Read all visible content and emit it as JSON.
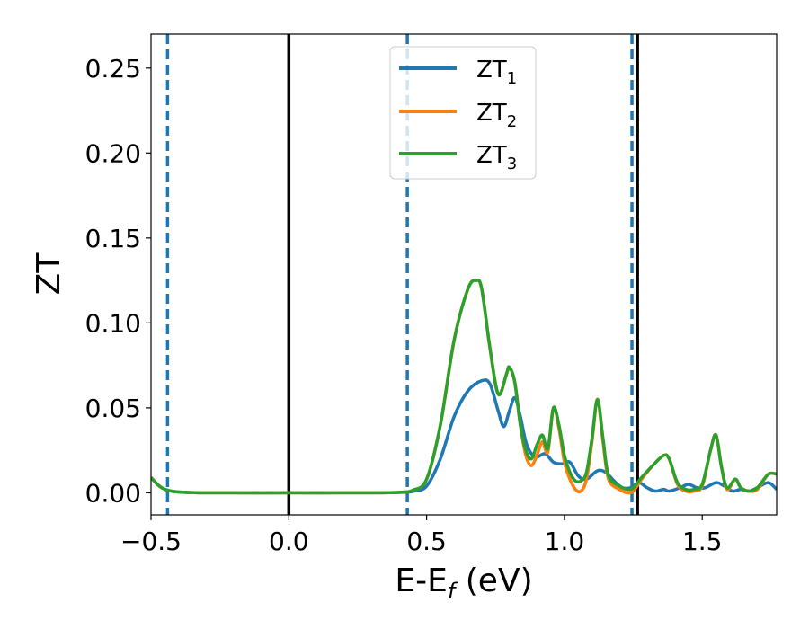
{
  "chart_data": {
    "type": "line",
    "xlabel": "E-E",
    "xlabel_sub": "f",
    "xlabel_unit": " (eV)",
    "ylabel": "ZT",
    "xlim": [
      -0.5,
      1.77
    ],
    "ylim": [
      -0.013,
      0.27
    ],
    "xticks": [
      -0.5,
      0.0,
      0.5,
      1.0,
      1.5
    ],
    "xtick_labels": [
      "−0.5",
      "0.0",
      "0.5",
      "1.0",
      "1.5"
    ],
    "yticks": [
      0.0,
      0.05,
      0.1,
      0.15,
      0.2,
      0.25
    ],
    "ytick_labels": [
      "0.00",
      "0.05",
      "0.10",
      "0.15",
      "0.20",
      "0.25"
    ],
    "grid": false,
    "legend_position": "top-center",
    "vertical_lines": [
      {
        "x": -0.44,
        "style": "dashed",
        "color": "#1f77b4"
      },
      {
        "x": 0.0,
        "style": "solid",
        "color": "#000000"
      },
      {
        "x": 0.43,
        "style": "dashed",
        "color": "#1f77b4"
      },
      {
        "x": 1.245,
        "style": "dashed",
        "color": "#1f77b4"
      },
      {
        "x": 1.265,
        "style": "solid",
        "color": "#000000"
      }
    ],
    "series": [
      {
        "name": "ZT",
        "name_sub": "1",
        "color": "#1f77b4",
        "points": [
          [
            -0.5,
            0.009
          ],
          [
            -0.47,
            0.004
          ],
          [
            -0.44,
            0.0015
          ],
          [
            -0.4,
            0.0005
          ],
          [
            -0.3,
            0.0
          ],
          [
            0.0,
            0.0
          ],
          [
            0.3,
            0.0
          ],
          [
            0.4,
            0.0002
          ],
          [
            0.45,
            0.0008
          ],
          [
            0.5,
            0.004
          ],
          [
            0.55,
            0.02
          ],
          [
            0.6,
            0.045
          ],
          [
            0.65,
            0.06
          ],
          [
            0.7,
            0.066
          ],
          [
            0.73,
            0.064
          ],
          [
            0.76,
            0.048
          ],
          [
            0.78,
            0.039
          ],
          [
            0.8,
            0.048
          ],
          [
            0.82,
            0.056
          ],
          [
            0.84,
            0.045
          ],
          [
            0.86,
            0.03
          ],
          [
            0.88,
            0.023
          ],
          [
            0.9,
            0.021
          ],
          [
            0.93,
            0.023
          ],
          [
            0.96,
            0.018
          ],
          [
            0.99,
            0.017
          ],
          [
            1.02,
            0.018
          ],
          [
            1.05,
            0.01
          ],
          [
            1.08,
            0.008
          ],
          [
            1.12,
            0.013
          ],
          [
            1.15,
            0.012
          ],
          [
            1.18,
            0.007
          ],
          [
            1.21,
            0.003
          ],
          [
            1.24,
            0.003
          ],
          [
            1.27,
            0.006
          ],
          [
            1.3,
            0.003
          ],
          [
            1.33,
            0.001
          ],
          [
            1.36,
            0.002
          ],
          [
            1.38,
            0.001
          ],
          [
            1.42,
            0.003
          ],
          [
            1.45,
            0.005
          ],
          [
            1.48,
            0.003
          ],
          [
            1.51,
            0.003
          ],
          [
            1.55,
            0.006
          ],
          [
            1.58,
            0.004
          ],
          [
            1.61,
            0.001
          ],
          [
            1.64,
            0.002
          ],
          [
            1.67,
            0.001
          ],
          [
            1.7,
            0.003
          ],
          [
            1.74,
            0.006
          ],
          [
            1.77,
            0.002
          ]
        ]
      },
      {
        "name": "ZT",
        "name_sub": "2",
        "color": "#ff7f0e",
        "points": [
          [
            -0.5,
            0.009
          ],
          [
            -0.47,
            0.004
          ],
          [
            -0.44,
            0.0015
          ],
          [
            -0.4,
            0.0005
          ],
          [
            -0.3,
            0.0
          ],
          [
            0.0,
            0.0
          ],
          [
            0.3,
            0.0
          ],
          [
            0.4,
            0.0003
          ],
          [
            0.45,
            0.0015
          ],
          [
            0.5,
            0.008
          ],
          [
            0.55,
            0.04
          ],
          [
            0.6,
            0.09
          ],
          [
            0.65,
            0.12
          ],
          [
            0.68,
            0.125
          ],
          [
            0.7,
            0.12
          ],
          [
            0.73,
            0.085
          ],
          [
            0.76,
            0.058
          ],
          [
            0.79,
            0.07
          ],
          [
            0.8,
            0.074
          ],
          [
            0.82,
            0.065
          ],
          [
            0.84,
            0.04
          ],
          [
            0.86,
            0.022
          ],
          [
            0.88,
            0.016
          ],
          [
            0.9,
            0.022
          ],
          [
            0.92,
            0.03
          ],
          [
            0.94,
            0.024
          ],
          [
            0.96,
            0.05
          ],
          [
            0.98,
            0.038
          ],
          [
            1.0,
            0.018
          ],
          [
            1.02,
            0.008
          ],
          [
            1.04,
            0.002
          ],
          [
            1.06,
            0.001
          ],
          [
            1.08,
            0.008
          ],
          [
            1.1,
            0.03
          ],
          [
            1.12,
            0.055
          ],
          [
            1.14,
            0.03
          ],
          [
            1.16,
            0.008
          ],
          [
            1.2,
            0.002
          ],
          [
            1.23,
            0.0
          ],
          [
            1.25,
            0.001
          ],
          [
            1.28,
            0.008
          ],
          [
            1.32,
            0.016
          ],
          [
            1.36,
            0.022
          ],
          [
            1.38,
            0.02
          ],
          [
            1.41,
            0.005
          ],
          [
            1.44,
            0.001
          ],
          [
            1.47,
            0.001
          ],
          [
            1.5,
            0.004
          ],
          [
            1.53,
            0.025
          ],
          [
            1.55,
            0.034
          ],
          [
            1.57,
            0.015
          ],
          [
            1.59,
            0.002
          ],
          [
            1.62,
            0.008
          ],
          [
            1.64,
            0.003
          ],
          [
            1.67,
            0.001
          ],
          [
            1.7,
            0.002
          ],
          [
            1.74,
            0.011
          ],
          [
            1.77,
            0.011
          ]
        ]
      },
      {
        "name": "ZT",
        "name_sub": "3",
        "color": "#2ca02c",
        "points": [
          [
            -0.5,
            0.009
          ],
          [
            -0.47,
            0.004
          ],
          [
            -0.44,
            0.0015
          ],
          [
            -0.4,
            0.0005
          ],
          [
            -0.3,
            0.0
          ],
          [
            0.0,
            0.0
          ],
          [
            0.3,
            0.0
          ],
          [
            0.4,
            0.0003
          ],
          [
            0.45,
            0.0015
          ],
          [
            0.5,
            0.008
          ],
          [
            0.55,
            0.04
          ],
          [
            0.6,
            0.09
          ],
          [
            0.65,
            0.12
          ],
          [
            0.68,
            0.125
          ],
          [
            0.7,
            0.12
          ],
          [
            0.73,
            0.085
          ],
          [
            0.76,
            0.058
          ],
          [
            0.79,
            0.07
          ],
          [
            0.8,
            0.074
          ],
          [
            0.82,
            0.065
          ],
          [
            0.84,
            0.04
          ],
          [
            0.86,
            0.025
          ],
          [
            0.88,
            0.02
          ],
          [
            0.9,
            0.028
          ],
          [
            0.92,
            0.034
          ],
          [
            0.94,
            0.026
          ],
          [
            0.96,
            0.05
          ],
          [
            0.98,
            0.04
          ],
          [
            1.0,
            0.022
          ],
          [
            1.02,
            0.012
          ],
          [
            1.04,
            0.007
          ],
          [
            1.06,
            0.007
          ],
          [
            1.08,
            0.012
          ],
          [
            1.1,
            0.032
          ],
          [
            1.12,
            0.055
          ],
          [
            1.14,
            0.032
          ],
          [
            1.16,
            0.01
          ],
          [
            1.2,
            0.004
          ],
          [
            1.23,
            0.002
          ],
          [
            1.25,
            0.003
          ],
          [
            1.28,
            0.009
          ],
          [
            1.32,
            0.016
          ],
          [
            1.36,
            0.022
          ],
          [
            1.38,
            0.02
          ],
          [
            1.41,
            0.006
          ],
          [
            1.44,
            0.002
          ],
          [
            1.47,
            0.002
          ],
          [
            1.5,
            0.005
          ],
          [
            1.53,
            0.025
          ],
          [
            1.55,
            0.034
          ],
          [
            1.57,
            0.015
          ],
          [
            1.59,
            0.003
          ],
          [
            1.62,
            0.008
          ],
          [
            1.64,
            0.003
          ],
          [
            1.67,
            0.001
          ],
          [
            1.7,
            0.003
          ],
          [
            1.74,
            0.011
          ],
          [
            1.77,
            0.011
          ]
        ]
      }
    ]
  }
}
